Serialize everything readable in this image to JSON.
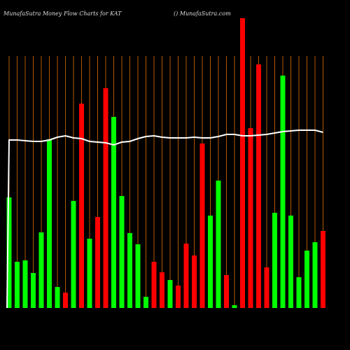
{
  "chart_data": {
    "type": "bar",
    "title": "MunafaSutra  Money Flow  Charts for KAT",
    "subtitle": "() MunafaSutra.com",
    "categories": [
      null,
      null,
      null,
      null,
      null,
      null,
      null,
      null,
      null,
      null,
      null,
      null,
      null,
      null,
      null,
      null,
      null,
      null,
      null,
      null,
      null,
      null,
      null,
      null,
      null,
      null,
      null,
      null,
      null,
      null,
      null,
      null,
      null,
      null,
      null,
      null,
      null,
      null,
      null,
      null
    ],
    "values": [
      158,
      66,
      68,
      50,
      108,
      241,
      30,
      22,
      153,
      292,
      99,
      130,
      314,
      273,
      160,
      107,
      91,
      16,
      66,
      51,
      40,
      32,
      92,
      75,
      235,
      132,
      182,
      47,
      4,
      414,
      257,
      348,
      58,
      136,
      332,
      132,
      44,
      82,
      94,
      110
    ],
    "colors": [
      "#00ff00",
      "#00ff00",
      "#00ff00",
      "#00ff00",
      "#00ff00",
      "#00ff00",
      "#00ff00",
      "#ff0000",
      "#00ff00",
      "#ff0000",
      "#00ff00",
      "#ff0000",
      "#ff0000",
      "#00ff00",
      "#00ff00",
      "#00ff00",
      "#00ff00",
      "#00ff00",
      "#ff0000",
      "#ff0000",
      "#00ff00",
      "#ff0000",
      "#ff0000",
      "#ff0000",
      "#ff0000",
      "#00ff00",
      "#00ff00",
      "#ff0000",
      "#00ff00",
      "#ff0000",
      "#ff0000",
      "#ff0000",
      "#ff0000",
      "#00ff00",
      "#00ff00",
      "#00ff00",
      "#00ff00",
      "#00ff00",
      "#00ff00",
      "#ff0000"
    ],
    "line_values": [
      240,
      240,
      239,
      238,
      238,
      240,
      244,
      246,
      243,
      242,
      238,
      237,
      236,
      233,
      237,
      238,
      242,
      245,
      246,
      244,
      243,
      243,
      243,
      244,
      243,
      243,
      245,
      248,
      248,
      246,
      246,
      247,
      248,
      250,
      252,
      253,
      254,
      254,
      254,
      251
    ],
    "line_color": "#ffffff",
    "grid_color": "#b35900",
    "ylim": [
      0,
      440
    ]
  }
}
